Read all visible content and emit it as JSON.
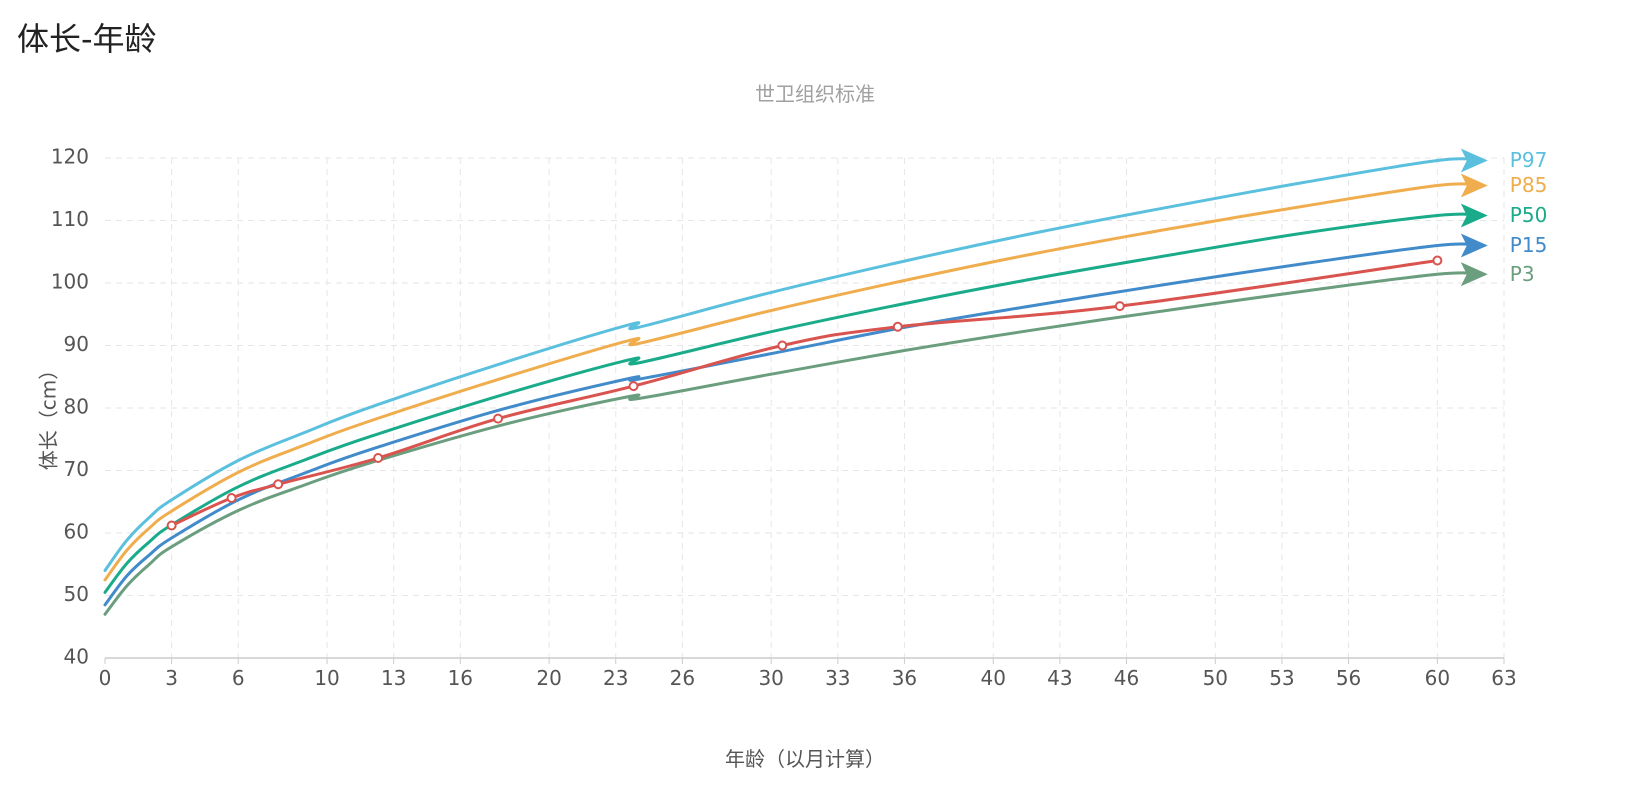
{
  "page": {
    "title": "体长-年龄"
  },
  "chart_data": {
    "type": "line",
    "title": "",
    "subtitle": "世卫组织标准",
    "xlabel": "年龄（以月计算）",
    "ylabel": "体长（cm）",
    "xlim": [
      0,
      63
    ],
    "ylim": [
      40,
      120
    ],
    "x_ticks": [
      0,
      3,
      6,
      10,
      13,
      16,
      20,
      23,
      26,
      30,
      33,
      36,
      40,
      43,
      46,
      50,
      53,
      56,
      60,
      63
    ],
    "y_ticks": [
      40,
      50,
      60,
      70,
      80,
      90,
      100,
      110,
      120
    ],
    "grid": true,
    "percentile_curves": [
      {
        "name": "P97",
        "color": "#5bc0de",
        "x": [
          0,
          1,
          2,
          3,
          6,
          9,
          12,
          18,
          23.7,
          24,
          30,
          36,
          42,
          48,
          54,
          60,
          62
        ],
        "y": [
          54,
          58.9,
          62.5,
          65.3,
          71.6,
          76.1,
          80.2,
          87.3,
          93.4,
          92.9,
          98.5,
          103.5,
          108.1,
          112.2,
          116.1,
          119.6,
          119.6
        ]
      },
      {
        "name": "P85",
        "color": "#f0ad4e",
        "x": [
          0,
          1,
          2,
          3,
          6,
          9,
          12,
          18,
          23.7,
          24,
          30,
          36,
          42,
          48,
          54,
          60,
          62
        ],
        "y": [
          52.5,
          57.3,
          60.8,
          63.5,
          69.7,
          74.1,
          78,
          84.9,
          90.9,
          90.3,
          95.6,
          100.4,
          104.8,
          108.7,
          112.3,
          115.6,
          115.6
        ]
      },
      {
        "name": "P50",
        "color": "#1aab8a",
        "x": [
          0,
          1,
          2,
          3,
          6,
          9,
          12,
          18,
          23.7,
          24,
          30,
          36,
          42,
          48,
          54,
          60,
          62
        ],
        "y": [
          50.5,
          55.2,
          58.6,
          61.3,
          67.4,
          71.7,
          75.5,
          82.2,
          87.8,
          87.2,
          92.2,
          96.7,
          100.8,
          104.5,
          108.0,
          110.8,
          110.8
        ]
      },
      {
        "name": "P15",
        "color": "#428bca",
        "x": [
          0,
          1,
          2,
          3,
          6,
          9,
          12,
          18,
          23.7,
          24,
          30,
          36,
          42,
          48,
          54,
          60,
          62
        ],
        "y": [
          48.5,
          53.2,
          56.5,
          59.2,
          65.3,
          69.6,
          73.4,
          79.9,
          84.8,
          84.6,
          88.7,
          92.9,
          96.5,
          99.9,
          103.1,
          106.0,
          106.0
        ]
      },
      {
        "name": "P3",
        "color": "#6b9e7e",
        "x": [
          0,
          1,
          2,
          3,
          6,
          9,
          12,
          18,
          23.7,
          24,
          30,
          36,
          42,
          48,
          54,
          60,
          62
        ],
        "y": [
          47.0,
          51.6,
          55.0,
          57.8,
          63.6,
          67.7,
          71.3,
          77.4,
          81.9,
          81.5,
          85.4,
          89.2,
          92.6,
          95.7,
          98.7,
          101.4,
          101.4
        ]
      }
    ],
    "measurements": {
      "color": "#d9534f",
      "x": [
        3,
        5.7,
        7.8,
        12.3,
        17.7,
        23.8,
        30.5,
        35.7,
        45.7,
        60
      ],
      "y": [
        61.2,
        65.6,
        67.8,
        72.0,
        78.3,
        83.5,
        90.0,
        93.0,
        96.3,
        103.6
      ]
    }
  }
}
